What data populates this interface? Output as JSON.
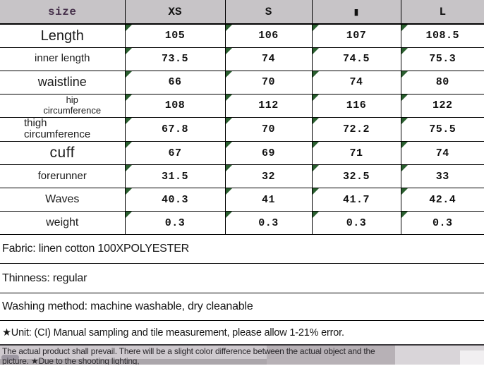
{
  "colors": {
    "header_bg": "#c7c4c7",
    "size_label": "#46314b",
    "marker": "#2a5f2f",
    "footer_bg": "#cec9ce",
    "border": "#000000"
  },
  "table": {
    "header": {
      "size_label": "size",
      "columns": [
        "XS",
        "S",
        "▮",
        "L"
      ]
    },
    "rows": [
      {
        "label": "Length",
        "style": "lg",
        "values": [
          "105",
          "106",
          "107",
          "108.5"
        ]
      },
      {
        "label": "inner length",
        "style": "md",
        "values": [
          "73.5",
          "74",
          "74.5",
          "75.3"
        ]
      },
      {
        "label": "waistline",
        "style": "lg2",
        "values": [
          "66",
          "70",
          "74",
          "80"
        ]
      },
      {
        "label": "hip\ncircumference",
        "style": "sm",
        "values": [
          "108",
          "112",
          "116",
          "122"
        ]
      },
      {
        "label": "thigh\ncircumference",
        "style": "sm2",
        "values": [
          "67.8",
          "70",
          "72.2",
          "75.5"
        ]
      },
      {
        "label": "cuff",
        "style": "xl",
        "values": [
          "67",
          "69",
          "71",
          "74"
        ]
      },
      {
        "label": "forerunner",
        "style": "md",
        "values": [
          "31.5",
          "32",
          "32.5",
          "33"
        ]
      },
      {
        "label": "Waves",
        "style": "md2",
        "values": [
          "40.3",
          "41",
          "41.7",
          "42.4"
        ]
      },
      {
        "label": "weight",
        "style": "md2",
        "values": [
          "0.3",
          "0.3",
          "0.3",
          "0.3"
        ]
      }
    ]
  },
  "notes": {
    "fabric": "Fabric: linen cotton 100XPOLYESTER",
    "thinness": "Thinness: regular",
    "washing": "Washing method: machine washable, dry cleanable",
    "unit": "★Unit: (CI) Manual sampling and tile measurement, please allow 1-21% error."
  },
  "footer": {
    "line1": "The actual product shall prevail. There will be a slight color difference between the actual object and the",
    "line2": "picture. ★Due to the shooting lighting,"
  }
}
